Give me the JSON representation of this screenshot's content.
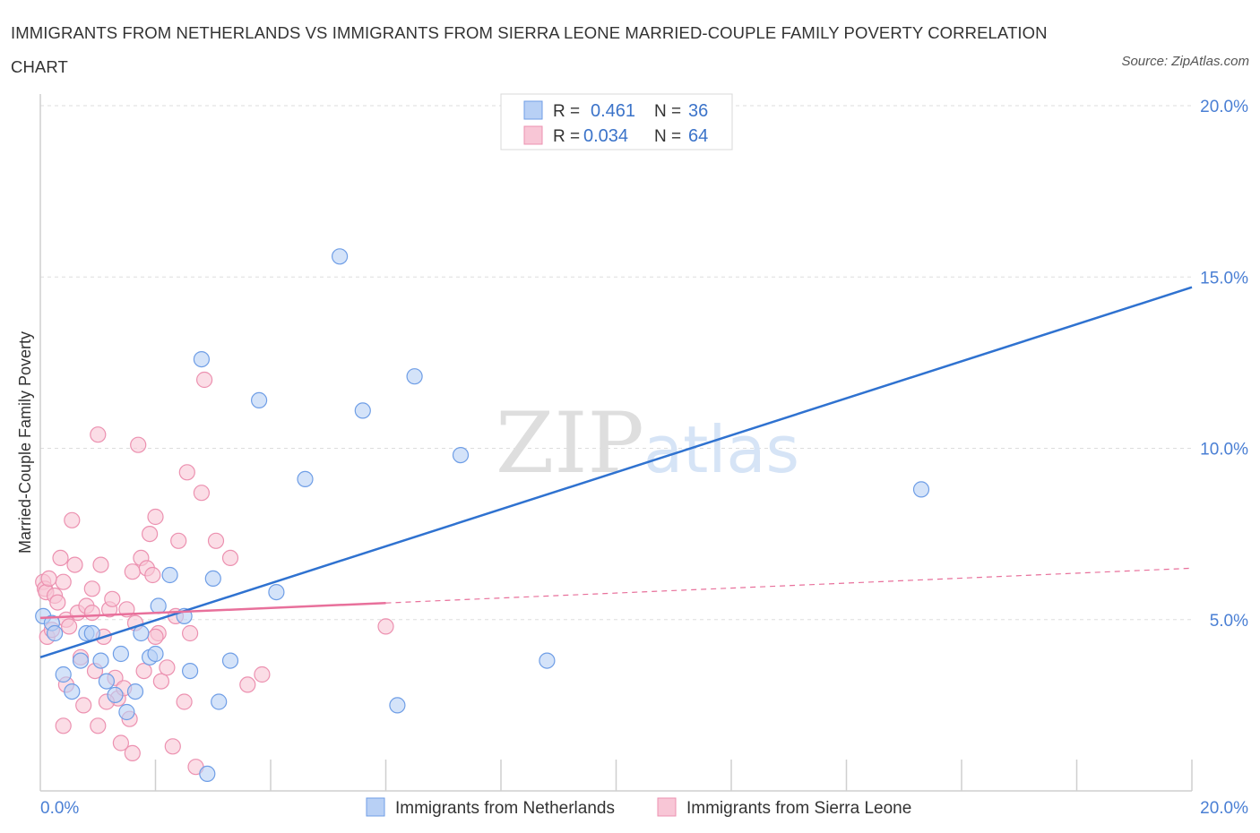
{
  "title": "IMMIGRANTS FROM NETHERLANDS VS IMMIGRANTS FROM SIERRA LEONE MARRIED-COUPLE FAMILY POVERTY CORRELATION CHART",
  "source": "Source: ZipAtlas.com",
  "watermark": {
    "zip": "ZIP",
    "atlas": "atlas"
  },
  "colors": {
    "netherlands_fill": "#b8d0f5",
    "netherlands_stroke": "#6f9ee6",
    "netherlands_line": "#2f72d0",
    "sierra_fill": "#f8c6d6",
    "sierra_stroke": "#ec91b0",
    "sierra_line": "#e8709b",
    "grid": "#dddddd",
    "axis_text": "#4a7fd4"
  },
  "legend": {
    "r_label": "R =",
    "n_label": "N =",
    "rows": [
      {
        "series": "netherlands",
        "r": "0.461",
        "n": "36"
      },
      {
        "series": "sierra",
        "r": "0.034",
        "n": "64"
      }
    ]
  },
  "chart_data": {
    "type": "scatter",
    "title": "IMMIGRANTS FROM NETHERLANDS VS IMMIGRANTS FROM SIERRA LEONE MARRIED-COUPLE FAMILY POVERTY CORRELATION CHART",
    "xlabel": "",
    "ylabel": "Married-Couple Family Poverty",
    "xlim": [
      0,
      20
    ],
    "ylim": [
      0,
      20
    ],
    "x_tick_labels": [
      "0.0%",
      "20.0%"
    ],
    "y_tick_labels": [
      {
        "value": 20,
        "label": "20.0%"
      },
      {
        "value": 15,
        "label": "15.0%"
      },
      {
        "value": 10,
        "label": "10.0%"
      },
      {
        "value": 5,
        "label": "5.0%"
      }
    ],
    "grid": true,
    "legend_position": "top-center",
    "series": [
      {
        "name": "Immigrants from Netherlands",
        "key": "netherlands",
        "r": 0.461,
        "n": 36,
        "trend": {
          "x": [
            0,
            20
          ],
          "y": [
            3.9,
            14.7
          ],
          "dashed_from": null
        },
        "points": [
          [
            0.05,
            5.1
          ],
          [
            0.2,
            4.9
          ],
          [
            0.25,
            4.6
          ],
          [
            0.4,
            3.4
          ],
          [
            0.55,
            2.9
          ],
          [
            0.7,
            3.8
          ],
          [
            0.8,
            4.6
          ],
          [
            0.9,
            4.6
          ],
          [
            1.05,
            3.8
          ],
          [
            1.15,
            3.2
          ],
          [
            1.3,
            2.8
          ],
          [
            1.4,
            4.0
          ],
          [
            1.5,
            2.3
          ],
          [
            1.65,
            2.9
          ],
          [
            1.75,
            4.6
          ],
          [
            1.9,
            3.9
          ],
          [
            2.0,
            4.0
          ],
          [
            2.05,
            5.4
          ],
          [
            2.25,
            6.3
          ],
          [
            2.5,
            5.1
          ],
          [
            2.6,
            3.5
          ],
          [
            2.8,
            12.6
          ],
          [
            2.9,
            0.5
          ],
          [
            3.0,
            6.2
          ],
          [
            3.1,
            2.6
          ],
          [
            3.3,
            3.8
          ],
          [
            3.8,
            11.4
          ],
          [
            4.1,
            5.8
          ],
          [
            4.6,
            9.1
          ],
          [
            5.2,
            15.6
          ],
          [
            5.6,
            11.1
          ],
          [
            6.2,
            2.5
          ],
          [
            6.5,
            12.1
          ],
          [
            7.3,
            9.8
          ],
          [
            8.8,
            3.8
          ],
          [
            15.3,
            8.8
          ]
        ]
      },
      {
        "name": "Immigrants from Sierra Leone",
        "key": "sierra",
        "r": 0.034,
        "n": 64,
        "trend": {
          "x": [
            0,
            20
          ],
          "y": [
            5.05,
            6.5
          ],
          "dashed_from": 6.0
        },
        "points": [
          [
            0.05,
            6.1
          ],
          [
            0.08,
            5.9
          ],
          [
            0.1,
            5.8
          ],
          [
            0.12,
            4.5
          ],
          [
            0.2,
            4.7
          ],
          [
            0.25,
            5.7
          ],
          [
            0.3,
            5.5
          ],
          [
            0.35,
            6.8
          ],
          [
            0.4,
            6.1
          ],
          [
            0.45,
            5.0
          ],
          [
            0.5,
            4.8
          ],
          [
            0.55,
            7.9
          ],
          [
            0.6,
            6.6
          ],
          [
            0.65,
            5.2
          ],
          [
            0.7,
            3.9
          ],
          [
            0.8,
            5.4
          ],
          [
            0.9,
            5.9
          ],
          [
            0.95,
            3.5
          ],
          [
            1.0,
            10.4
          ],
          [
            1.05,
            6.6
          ],
          [
            1.1,
            4.5
          ],
          [
            1.2,
            5.3
          ],
          [
            1.25,
            5.6
          ],
          [
            1.3,
            3.3
          ],
          [
            1.35,
            2.7
          ],
          [
            1.4,
            1.4
          ],
          [
            1.45,
            3.0
          ],
          [
            1.5,
            5.3
          ],
          [
            1.55,
            2.1
          ],
          [
            1.6,
            6.4
          ],
          [
            1.65,
            4.9
          ],
          [
            1.7,
            10.1
          ],
          [
            1.75,
            6.8
          ],
          [
            1.8,
            3.5
          ],
          [
            1.85,
            6.5
          ],
          [
            1.9,
            7.5
          ],
          [
            1.95,
            6.3
          ],
          [
            2.0,
            8.0
          ],
          [
            2.05,
            4.6
          ],
          [
            2.1,
            3.2
          ],
          [
            2.2,
            3.6
          ],
          [
            2.3,
            1.3
          ],
          [
            2.35,
            5.1
          ],
          [
            2.4,
            7.3
          ],
          [
            2.5,
            2.6
          ],
          [
            2.55,
            9.3
          ],
          [
            2.6,
            4.6
          ],
          [
            2.7,
            0.7
          ],
          [
            2.8,
            8.7
          ],
          [
            2.85,
            12.0
          ],
          [
            3.05,
            7.3
          ],
          [
            3.3,
            6.8
          ],
          [
            3.6,
            3.1
          ],
          [
            3.85,
            3.4
          ],
          [
            6.0,
            4.8
          ],
          [
            0.15,
            6.2
          ],
          [
            0.9,
            5.2
          ],
          [
            1.15,
            2.6
          ],
          [
            1.0,
            1.9
          ],
          [
            0.4,
            1.9
          ],
          [
            0.45,
            3.1
          ],
          [
            0.75,
            2.5
          ],
          [
            1.6,
            1.1
          ],
          [
            2.0,
            4.5
          ]
        ]
      }
    ],
    "legend_entries": [
      "Immigrants from Netherlands",
      "Immigrants from Sierra Leone"
    ]
  }
}
